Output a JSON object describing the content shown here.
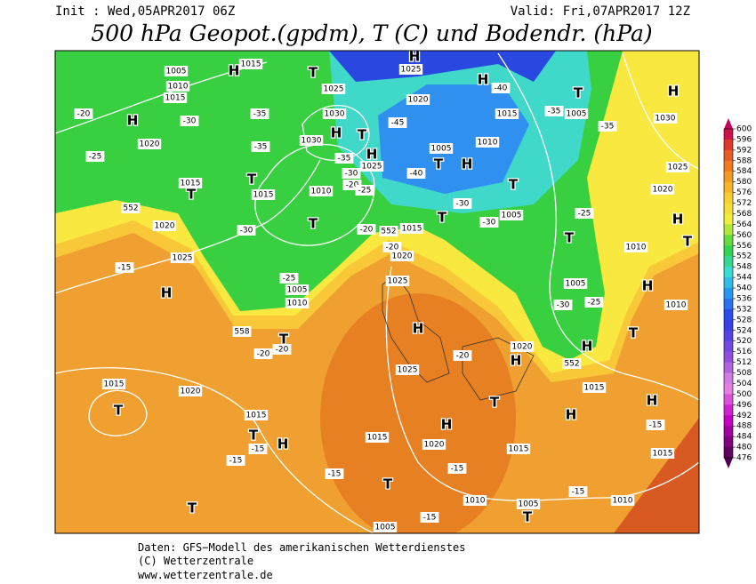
{
  "header": {
    "init": "Init : Wed,05APR2017 06Z",
    "valid": "Valid: Fri,07APR2017 12Z",
    "title": "500 hPa Geopot.(gpdm), T (C) und Bodendr. (hPa)"
  },
  "colorbar": {
    "ticks": [
      600,
      596,
      592,
      588,
      584,
      580,
      576,
      572,
      568,
      564,
      560,
      556,
      552,
      548,
      544,
      540,
      536,
      532,
      528,
      524,
      520,
      516,
      512,
      508,
      504,
      500,
      496,
      492,
      488,
      484,
      480,
      476
    ]
  },
  "map_labels": [
    "1005",
    "1010",
    "1015",
    "1015",
    "H",
    "T",
    "1025",
    "1030",
    "1030",
    "H",
    "T",
    "1020",
    "1025",
    "H",
    "H",
    "-40",
    "1015",
    "-35",
    "1005",
    "T",
    "H",
    "1030",
    "-35",
    "1010",
    "1005",
    "T",
    "H",
    "-45",
    "-40",
    "T",
    "1025",
    "H",
    "-30",
    "-35",
    "-20",
    "-25",
    "1010",
    "T",
    "1015",
    "T",
    "-35",
    "-35",
    "H",
    "1020",
    "-30",
    "-20",
    "-25",
    "1015",
    "T",
    "1020",
    "-30",
    "-20",
    "1015",
    "T",
    "-30",
    "1005",
    "-30",
    "-25",
    "T",
    "1010",
    "1025",
    "1020",
    "H",
    "T",
    "1020",
    "-20",
    "-25",
    "1005",
    "1010",
    "1025",
    "-15",
    "H",
    "1025",
    "H",
    "1005",
    "H",
    "-30",
    "-25",
    "1010",
    "T",
    "1020",
    "H",
    "H",
    "-20",
    "T",
    "-20",
    "-20",
    "1025",
    "1015",
    "T",
    "1020",
    "1015",
    "T",
    "1015",
    "H",
    "H",
    "-15",
    "T",
    "H",
    "-15",
    "-15",
    "1015",
    "1020",
    "H",
    "1015",
    "1015",
    "-15",
    "-15",
    "T",
    "1010",
    "1005",
    "-15",
    "1010",
    "T",
    "T",
    "-15",
    "1005",
    "552",
    "552",
    "558",
    "552"
  ],
  "footer": [
    "Daten: GFS−Modell des amerikanischen Wetterdienstes",
    "(C) Wetterzentrale",
    "www.wetterzentrale.de"
  ]
}
